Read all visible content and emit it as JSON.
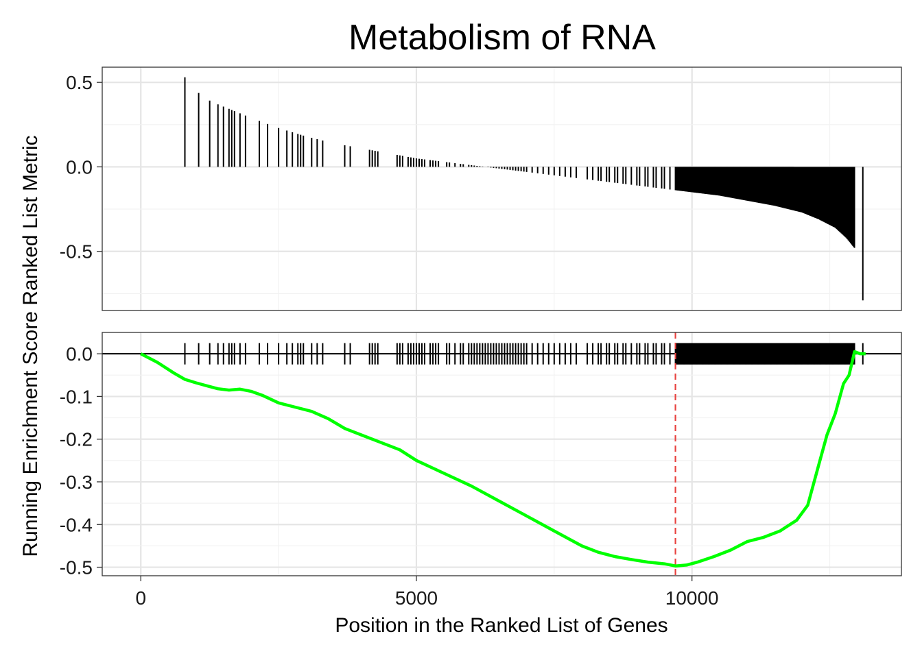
{
  "chart_data": {
    "type": "gsea",
    "title": "Metabolism of RNA",
    "xlabel": "Position in the Ranked List of Genes",
    "ylabel": "Running Enrichment Score Ranked List Metric",
    "x_ticks": [
      0,
      5000,
      10000
    ],
    "xlim": [
      -700,
      13800
    ],
    "panels": [
      {
        "name": "ranked-list-metric",
        "ylim": [
          -0.85,
          0.59
        ],
        "y_ticks": [
          0.5,
          0.0,
          -0.5
        ],
        "y_tick_labels": [
          "0.5",
          "0.0",
          "-0.5"
        ],
        "grid": true
      },
      {
        "name": "running-enrichment-score",
        "ylim": [
          -0.52,
          0.05
        ],
        "y_ticks": [
          0.0,
          -0.1,
          -0.2,
          -0.3,
          -0.4,
          -0.5
        ],
        "y_tick_labels": [
          "0.0",
          "-0.1",
          "-0.2",
          "-0.3",
          "-0.4",
          "-0.5"
        ],
        "grid": true
      }
    ],
    "ranked_metric_curve": {
      "x": [
        800,
        1000,
        1200,
        1400,
        1700,
        2000,
        2500,
        3000,
        3500,
        4000,
        4500,
        5000,
        5500,
        6000,
        6500,
        7000,
        7500,
        8000,
        8500,
        9000,
        9500,
        10000,
        10500,
        11000,
        11500,
        12000,
        12300,
        12600,
        12800,
        12950,
        13100
      ],
      "y": [
        0.53,
        0.45,
        0.4,
        0.37,
        0.33,
        0.29,
        0.23,
        0.18,
        0.14,
        0.11,
        0.08,
        0.05,
        0.03,
        0.01,
        -0.01,
        -0.03,
        -0.05,
        -0.07,
        -0.09,
        -0.11,
        -0.13,
        -0.15,
        -0.17,
        -0.2,
        -0.23,
        -0.27,
        -0.31,
        -0.36,
        -0.42,
        -0.48,
        -0.79
      ]
    },
    "gene_hits": {
      "dense_start": 9700,
      "dense_end": 12950,
      "sparse": [
        800,
        1050,
        1250,
        1400,
        1500,
        1600,
        1650,
        1700,
        1800,
        1900,
        2150,
        2300,
        2500,
        2650,
        2750,
        2850,
        2900,
        2950,
        3100,
        3200,
        3300,
        3700,
        3800,
        4150,
        4200,
        4250,
        4300,
        4650,
        4700,
        4750,
        4850,
        4900,
        4950,
        5000,
        5050,
        5100,
        5150,
        5250,
        5300,
        5350,
        5400,
        5550,
        5600,
        5700,
        5800,
        5850,
        5950,
        6000,
        6050,
        6100,
        6150,
        6200,
        6250,
        6300,
        6350,
        6400,
        6450,
        6500,
        6550,
        6600,
        6650,
        6700,
        6750,
        6800,
        6850,
        6900,
        6950,
        7000,
        7100,
        7200,
        7300,
        7400,
        7500,
        7600,
        7700,
        7800,
        7900,
        8100,
        8200,
        8300,
        8350,
        8450,
        8500,
        8600,
        8650,
        8750,
        8800,
        8900,
        9000,
        9050,
        9150,
        9200,
        9300,
        9350,
        9450,
        9500,
        9600
      ],
      "last": 13100
    },
    "running_es": {
      "x": [
        0,
        300,
        600,
        800,
        1000,
        1200,
        1400,
        1600,
        1800,
        2000,
        2200,
        2500,
        2800,
        3100,
        3400,
        3700,
        4000,
        4300,
        4700,
        5000,
        5500,
        6000,
        6500,
        7000,
        7500,
        8000,
        8300,
        8600,
        8900,
        9200,
        9500,
        9700,
        9900,
        10100,
        10400,
        10700,
        11000,
        11300,
        11600,
        11900,
        12100,
        12300,
        12450,
        12600,
        12750,
        12850,
        12950,
        13050,
        13150
      ],
      "y": [
        0.0,
        -0.02,
        -0.045,
        -0.06,
        -0.068,
        -0.075,
        -0.082,
        -0.085,
        -0.083,
        -0.088,
        -0.097,
        -0.115,
        -0.125,
        -0.135,
        -0.152,
        -0.175,
        -0.19,
        -0.205,
        -0.225,
        -0.25,
        -0.28,
        -0.31,
        -0.345,
        -0.38,
        -0.415,
        -0.45,
        -0.465,
        -0.475,
        -0.482,
        -0.488,
        -0.492,
        -0.497,
        -0.495,
        -0.488,
        -0.475,
        -0.46,
        -0.44,
        -0.43,
        -0.415,
        -0.39,
        -0.355,
        -0.26,
        -0.19,
        -0.14,
        -0.07,
        -0.05,
        0.005,
        0.0,
        0.0
      ],
      "color": "#00FF00"
    },
    "max_deviation_x": 9700,
    "max_deviation_color": "#E8423F",
    "hit_color": "#000000"
  }
}
